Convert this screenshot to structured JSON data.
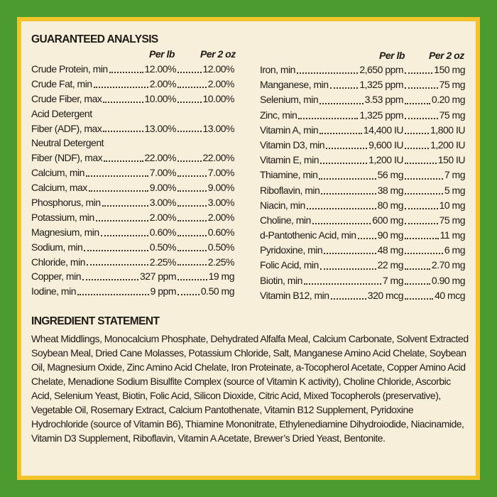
{
  "guaranteed_analysis": {
    "title": "GUARANTEED ANALYSIS",
    "col_per_lb": "Per lb",
    "col_per_2oz": "Per 2 oz",
    "left": [
      {
        "name": "Crude Protein, min",
        "per_lb": "12.00%",
        "per_2oz": "12.00%"
      },
      {
        "name": "Crude Fat, min",
        "per_lb": "2.00%",
        "per_2oz": "2.00%"
      },
      {
        "name": "Crude Fiber, max",
        "per_lb": "10.00%",
        "per_2oz": "10.00%"
      },
      {
        "name": "Acid Detergent",
        "label_only": true
      },
      {
        "name": "Fiber (ADF), max",
        "per_lb": "13.00%",
        "per_2oz": "13.00%"
      },
      {
        "name": "Neutral Detergent",
        "label_only": true
      },
      {
        "name": "Fiber (NDF), max",
        "per_lb": "22.00%",
        "per_2oz": "22.00%"
      },
      {
        "name": "Calcium, min",
        "per_lb": "7.00%",
        "per_2oz": "7.00%"
      },
      {
        "name": "Calcium, max",
        "per_lb": "9.00%",
        "per_2oz": "9.00%"
      },
      {
        "name": "Phosphorus, min",
        "per_lb": "3.00%",
        "per_2oz": "3.00%"
      },
      {
        "name": "Potassium, min",
        "per_lb": "2.00%",
        "per_2oz": "2.00%"
      },
      {
        "name": "Magnesium, min",
        "per_lb": "0.60%",
        "per_2oz": "0.60%"
      },
      {
        "name": "Sodium, min",
        "per_lb": "0.50%",
        "per_2oz": "0.50%"
      },
      {
        "name": "Chloride, min",
        "per_lb": "2.25%",
        "per_2oz": "2.25%"
      },
      {
        "name": "Copper, min",
        "per_lb": "327 ppm",
        "per_2oz": "19 mg"
      },
      {
        "name": "Iodine, min",
        "per_lb": "9 ppm",
        "per_2oz": "0.50 mg"
      }
    ],
    "right": [
      {
        "name": "Iron, min",
        "per_lb": "2,650 ppm",
        "per_2oz": "150 mg"
      },
      {
        "name": "Manganese, min",
        "per_lb": "1,325 ppm",
        "per_2oz": "75 mg"
      },
      {
        "name": "Selenium, min",
        "per_lb": "3.53 ppm",
        "per_2oz": "0.20 mg"
      },
      {
        "name": "Zinc, min",
        "per_lb": "1,325 ppm",
        "per_2oz": "75 mg"
      },
      {
        "name": "Vitamin A, min",
        "per_lb": "14,400 IU",
        "per_2oz": "1,800 IU"
      },
      {
        "name": "Vitamin D3, min",
        "per_lb": "9,600 IU",
        "per_2oz": "1,200 IU"
      },
      {
        "name": "Vitamin E, min",
        "per_lb": "1,200 IU",
        "per_2oz": "150 IU"
      },
      {
        "name": "Thiamine, min",
        "per_lb": "56 mg",
        "per_2oz": "7 mg"
      },
      {
        "name": "Riboflavin, min",
        "per_lb": "38 mg",
        "per_2oz": "5 mg"
      },
      {
        "name": "Niacin, min",
        "per_lb": "80 mg",
        "per_2oz": "10 mg"
      },
      {
        "name": "Choline, min",
        "per_lb": "600 mg",
        "per_2oz": "75 mg"
      },
      {
        "name": "d-Pantothenic Acid, min",
        "per_lb": "90 mg",
        "per_2oz": "11 mg"
      },
      {
        "name": "Pyridoxine, min",
        "per_lb": "48 mg",
        "per_2oz": "6 mg"
      },
      {
        "name": "Folic Acid, min",
        "per_lb": "22 mg",
        "per_2oz": "2.70 mg"
      },
      {
        "name": "Biotin, min",
        "per_lb": "7 mg",
        "per_2oz": "0.90 mg"
      },
      {
        "name": "Vitamin B12, min",
        "per_lb": "320 mcg",
        "per_2oz": "40 mcg"
      }
    ]
  },
  "ingredient_statement": {
    "title": "INGREDIENT STATEMENT",
    "lines": [
      "Wheat Middlings, Monocalcium Phosphate, Dehydrated Alfalfa Meal, Calcium Carbonate, Solvent",
      "Extracted Soybean Meal, Dried Cane Molasses, Potassium Chloride, Salt, Manganese Amino Acid",
      "Chelate, Soybean Oil, Magnesium Oxide, Zinc Amino Acid Chelate, Iron Proteinate, a-Tocopherol",
      "Acetate, Copper Amino Acid Chelate, Menadione Sodium Bisulfite Complex (source of Vitamin K",
      "activity), Choline Chloride, Ascorbic Acid, Selenium Yeast, Biotin, Folic Acid, Silicon Dioxide, Citric",
      "Acid, Mixed Tocopherols (preservative), Vegetable Oil, Rosemary Extract, Calcium Pantothenate,",
      "Vitamin B12 Supplement, Pyridoxine Hydrochloride (source of Vitamin B6), Thiamine Mononitrate,",
      "Ethylenediamine Dihydroiodide, Niacinamide, Vitamin D3 Supplement, Riboflavin, Vitamin A",
      "Acetate, Brewer’s Dried Yeast, Bentonite."
    ]
  },
  "colors": {
    "background": "#4c9b2f",
    "border": "#f4c22b",
    "panel": "#f7efda",
    "text": "#1e1a16"
  }
}
